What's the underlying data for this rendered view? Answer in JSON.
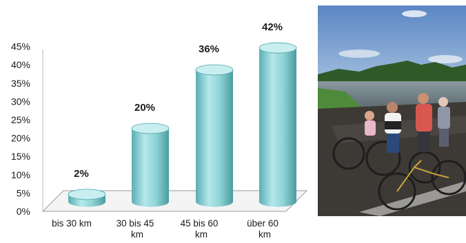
{
  "chart_data": {
    "type": "bar",
    "style": "3d-cylinder",
    "categories": [
      "bis 30 km",
      "30 bis 45 km",
      "45 bis 60 km",
      "über 60 km"
    ],
    "values": [
      2,
      20,
      36,
      42
    ],
    "data_labels": [
      "2%",
      "20%",
      "36%",
      "42%"
    ],
    "yticks": [
      "0%",
      "5%",
      "10%",
      "15%",
      "20%",
      "25%",
      "30%",
      "35%",
      "40%",
      "45%"
    ],
    "ylim": [
      0,
      45
    ],
    "unit": "%",
    "grid": false,
    "legend": "none",
    "title": "",
    "xlabel": "",
    "ylabel": "",
    "colors": {
      "bar": "#8fd3d6",
      "bar_top": "#c8eef0",
      "bar_dark": "#4fa5aa",
      "floor_edge": "#9a9a9a"
    }
  },
  "photo": {
    "subject": "group-of-cyclists-by-river",
    "colors": {
      "sky": "#6f93c8",
      "water": "#6f7f86",
      "grass": "#4f8a3a",
      "trees": "#2f5a28"
    }
  }
}
